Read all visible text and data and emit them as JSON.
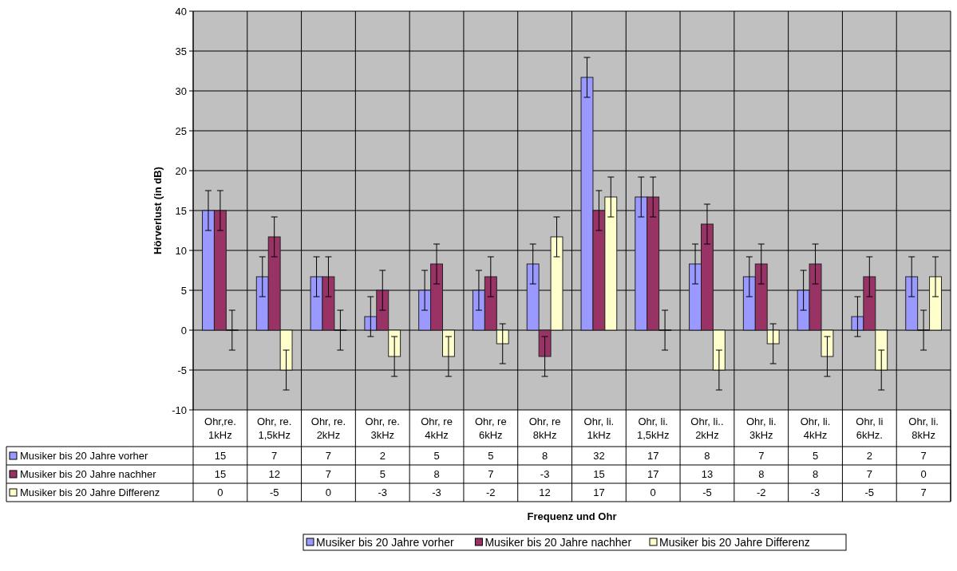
{
  "chart_data": {
    "type": "bar",
    "annotations": [
      "Frequenz und Ohr"
    ],
    "ylabel": "Hörverlust (in dB)",
    "categories": [
      "Ohr,re.\n1kHz",
      "Ohr, re.\n1,5kHz",
      "Ohr, re.\n2kHz",
      "Ohr, re.\n3kHz",
      "Ohr, re\n4kHz",
      "Ohr, re\n6kHz",
      "Ohr, re\n8kHz",
      "Ohr, li.\n1kHz",
      "Ohr, li.\n1,5kHz",
      "Ohr, li..\n2kHz",
      "Ohr, li.\n3kHz",
      "Ohr, li.\n4kHz",
      "Ohr, li\n6kHz.",
      "Ohr, li.\n8kHz"
    ],
    "series": [
      {
        "name": "Musiker bis 20 Jahre vorher",
        "color": "#9999ff",
        "values": [
          15,
          6.7,
          6.7,
          1.7,
          5,
          5,
          8.3,
          31.7,
          16.7,
          8.3,
          6.7,
          5,
          1.7,
          6.7
        ],
        "errors": [
          2.5,
          2.5,
          2.5,
          2.5,
          2.5,
          2.5,
          2.5,
          2.5,
          2.5,
          2.5,
          2.5,
          2.5,
          2.5,
          2.5
        ],
        "value_labels": [
          "15",
          "7",
          "7",
          "2",
          "5",
          "5",
          "8",
          "32",
          "17",
          "8",
          "7",
          "5",
          "2",
          "7"
        ]
      },
      {
        "name": "Musiker bis 20 Jahre nachher",
        "color": "#993366",
        "values": [
          15,
          11.7,
          6.7,
          5,
          8.3,
          6.7,
          -3.3,
          15,
          16.7,
          13.3,
          8.3,
          8.3,
          6.7,
          0
        ],
        "errors": [
          2.5,
          2.5,
          2.5,
          2.5,
          2.5,
          2.5,
          2.5,
          2.5,
          2.5,
          2.5,
          2.5,
          2.5,
          2.5,
          2.5
        ],
        "value_labels": [
          "15",
          "12",
          "7",
          "5",
          "8",
          "7",
          "-3",
          "15",
          "17",
          "13",
          "8",
          "8",
          "7",
          "0"
        ]
      },
      {
        "name": "Musiker bis 20 Jahre Differenz",
        "color": "#ffffcc",
        "values": [
          0,
          -5,
          0,
          -3.3,
          -3.3,
          -1.7,
          11.7,
          16.7,
          0,
          -5,
          -1.7,
          -3.3,
          -5,
          6.7
        ],
        "errors": [
          2.5,
          2.5,
          2.5,
          2.5,
          2.5,
          2.5,
          2.5,
          2.5,
          2.5,
          2.5,
          2.5,
          2.5,
          2.5,
          2.5
        ],
        "value_labels": [
          "0",
          "-5",
          "0",
          "-3",
          "-3",
          "-2",
          "12",
          "17",
          "0",
          "-5",
          "-2",
          "-3",
          "-5",
          "7"
        ]
      }
    ],
    "ylim": [
      -10,
      40
    ],
    "yticks": [
      -10,
      -5,
      0,
      5,
      10,
      15,
      20,
      25,
      30,
      35,
      40
    ],
    "grid": true,
    "legend": "bottom"
  }
}
